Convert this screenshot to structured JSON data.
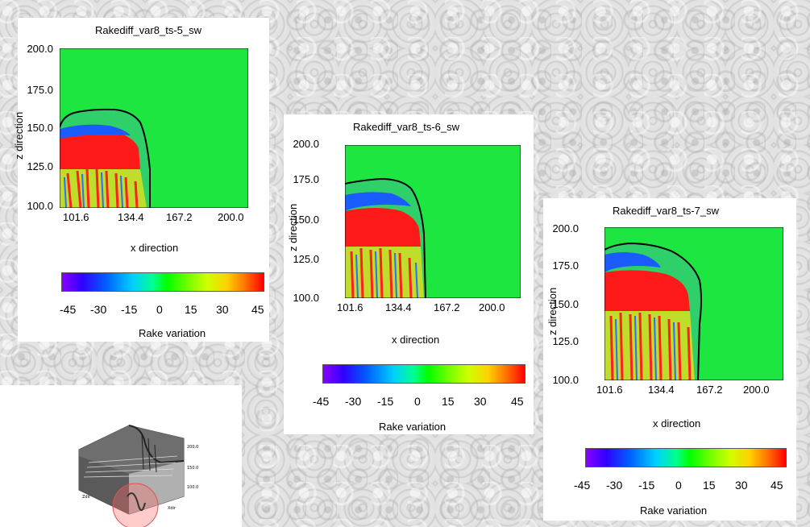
{
  "colorbar": {
    "ticks": [
      "-45",
      "-30",
      "-15",
      "0",
      "15",
      "30",
      "45"
    ],
    "label": "Rake variation",
    "colors": [
      "#8a00ff",
      "#3000ff",
      "#0060ff",
      "#00d0ff",
      "#00ff90",
      "#00ff00",
      "#d0ff00",
      "#ffd000",
      "#ff7000",
      "#ff0000"
    ]
  },
  "chart_data": [
    {
      "type": "heatmap",
      "title": "Rakediff_var8_ts-5_sw",
      "xlabel": "x direction",
      "ylabel": "z direction",
      "x_ticks": [
        "101.6",
        "134.4",
        "167.2",
        "200.0"
      ],
      "y_ticks": [
        "200.0",
        "175.0",
        "150.0",
        "125.0",
        "100.0"
      ],
      "xlim": [
        101.6,
        200.0
      ],
      "ylim": [
        100.0,
        200.0
      ],
      "front_z": 162,
      "front_x": 135,
      "background_value": 0
    },
    {
      "type": "heatmap",
      "title": "Rakediff_var8_ts-6_sw",
      "xlabel": "x direction",
      "ylabel": "z direction",
      "x_ticks": [
        "101.6",
        "134.4",
        "167.2",
        "200.0"
      ],
      "y_ticks": [
        "200.0",
        "175.0",
        "150.0",
        "125.0",
        "100.0"
      ],
      "xlim": [
        101.6,
        200.0
      ],
      "ylim": [
        100.0,
        200.0
      ],
      "front_z": 176,
      "front_x": 140,
      "background_value": 0
    },
    {
      "type": "heatmap",
      "title": "Rakediff_var8_ts-7_sw",
      "xlabel": "x direction",
      "ylabel": "z direction",
      "x_ticks": [
        "101.6",
        "134.4",
        "167.2",
        "200.0"
      ],
      "y_ticks": [
        "200.0",
        "175.0",
        "150.0",
        "125.0",
        "100.0"
      ],
      "xlim": [
        101.6,
        200.0
      ],
      "ylim": [
        100.0,
        200.0
      ],
      "front_z": 189,
      "front_x": 165,
      "background_value": 0
    }
  ]
}
